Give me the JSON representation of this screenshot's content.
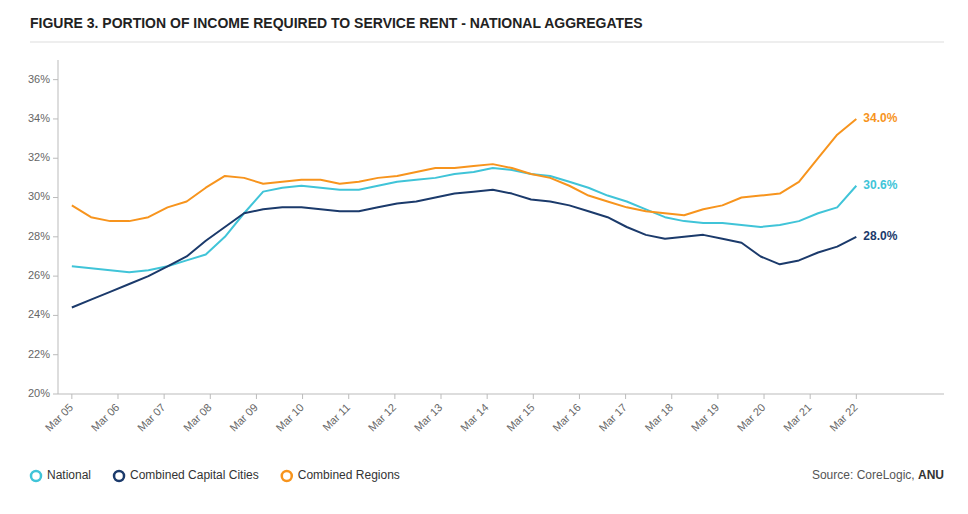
{
  "chart_data": {
    "type": "line",
    "title": "FIGURE 3. PORTION OF INCOME REQUIRED TO SERVICE RENT - NATIONAL AGGREGATES",
    "x": [
      0,
      0.414634,
      0.829268,
      1.243902,
      1.658537,
      2.073171,
      2.487805,
      2.902439,
      3.317073,
      3.731707,
      4.146341,
      4.560976,
      4.97561,
      5.390244,
      5.804878,
      6.219512,
      6.634146,
      7.04878,
      7.463415,
      7.878049,
      8.292683,
      8.707317,
      9.121951,
      9.536585,
      9.95122,
      10.365854,
      10.780488,
      11.195122,
      11.609756,
      12.02439,
      12.439024,
      12.853659,
      13.268293,
      13.682927,
      14.097561,
      14.512195,
      14.926829,
      15.341463,
      15.756098,
      16.170732,
      16.585366,
      17
    ],
    "xlim": [
      -0.3,
      18.9
    ],
    "xticks": [
      {
        "value": 0,
        "label": "Mar 05"
      },
      {
        "value": 1,
        "label": "Mar 06"
      },
      {
        "value": 2,
        "label": "Mar 07"
      },
      {
        "value": 3,
        "label": "Mar 08"
      },
      {
        "value": 4,
        "label": "Mar 09"
      },
      {
        "value": 5,
        "label": "Mar 10"
      },
      {
        "value": 6,
        "label": "Mar 11"
      },
      {
        "value": 7,
        "label": "Mar 12"
      },
      {
        "value": 8,
        "label": "Mar 13"
      },
      {
        "value": 9,
        "label": "Mar 14"
      },
      {
        "value": 10,
        "label": "Mar 15"
      },
      {
        "value": 11,
        "label": "Mar 16"
      },
      {
        "value": 12,
        "label": "Mar 17"
      },
      {
        "value": 13,
        "label": "Mar 18"
      },
      {
        "value": 14,
        "label": "Mar 19"
      },
      {
        "value": 15,
        "label": "Mar 20"
      },
      {
        "value": 16,
        "label": "Mar 21"
      },
      {
        "value": 17,
        "label": "Mar 22"
      }
    ],
    "ylim": [
      20,
      37
    ],
    "yticks": [
      {
        "value": 20,
        "label": "20%"
      },
      {
        "value": 22,
        "label": "22%"
      },
      {
        "value": 24,
        "label": "24%"
      },
      {
        "value": 26,
        "label": "26%"
      },
      {
        "value": 28,
        "label": "28%"
      },
      {
        "value": 30,
        "label": "30%"
      },
      {
        "value": 32,
        "label": "32%"
      },
      {
        "value": 34,
        "label": "34%"
      },
      {
        "value": 36,
        "label": "36%"
      }
    ],
    "series": [
      {
        "name": "National",
        "color": "#40C4D8",
        "values": [
          26.5,
          26.4,
          26.3,
          26.2,
          26.3,
          26.5,
          26.8,
          27.1,
          28.0,
          29.2,
          30.3,
          30.5,
          30.6,
          30.5,
          30.4,
          30.4,
          30.6,
          30.8,
          30.9,
          31.0,
          31.2,
          31.3,
          31.5,
          31.4,
          31.2,
          31.1,
          30.8,
          30.5,
          30.1,
          29.8,
          29.4,
          29.0,
          28.8,
          28.7,
          28.7,
          28.6,
          28.5,
          28.6,
          28.8,
          29.2,
          29.5,
          30.6
        ]
      },
      {
        "name": "Combined Capital Cities",
        "color": "#1B3A6B",
        "values": [
          24.4,
          24.8,
          25.2,
          25.6,
          26.0,
          26.5,
          27.0,
          27.8,
          28.5,
          29.2,
          29.4,
          29.5,
          29.5,
          29.4,
          29.3,
          29.3,
          29.5,
          29.7,
          29.8,
          30.0,
          30.2,
          30.3,
          30.4,
          30.2,
          29.9,
          29.8,
          29.6,
          29.3,
          29.0,
          28.5,
          28.1,
          27.9,
          28.0,
          28.1,
          27.9,
          27.7,
          27.0,
          26.6,
          26.8,
          27.2,
          27.5,
          28.0
        ]
      },
      {
        "name": "Combined Regions",
        "color": "#F7941D",
        "values": [
          29.6,
          29.0,
          28.8,
          28.8,
          29.0,
          29.5,
          29.8,
          30.5,
          31.1,
          31.0,
          30.7,
          30.8,
          30.9,
          30.9,
          30.7,
          30.8,
          31.0,
          31.1,
          31.3,
          31.5,
          31.5,
          31.6,
          31.7,
          31.5,
          31.2,
          31.0,
          30.6,
          30.1,
          29.8,
          29.5,
          29.3,
          29.2,
          29.1,
          29.4,
          29.6,
          30.0,
          30.1,
          30.2,
          30.8,
          32.0,
          33.2,
          34.0
        ]
      }
    ],
    "annotations": [
      {
        "text": "30.6%",
        "x": 17,
        "y": 30.6
      },
      {
        "text": "28.0%",
        "x": 17,
        "y": 28.0
      },
      {
        "text": "34.0%",
        "x": 17,
        "y": 34.0
      }
    ],
    "source": {
      "text": "Source: CoreLogic, ",
      "highlight": "ANU"
    },
    "legend": "bottom",
    "grid": false
  }
}
